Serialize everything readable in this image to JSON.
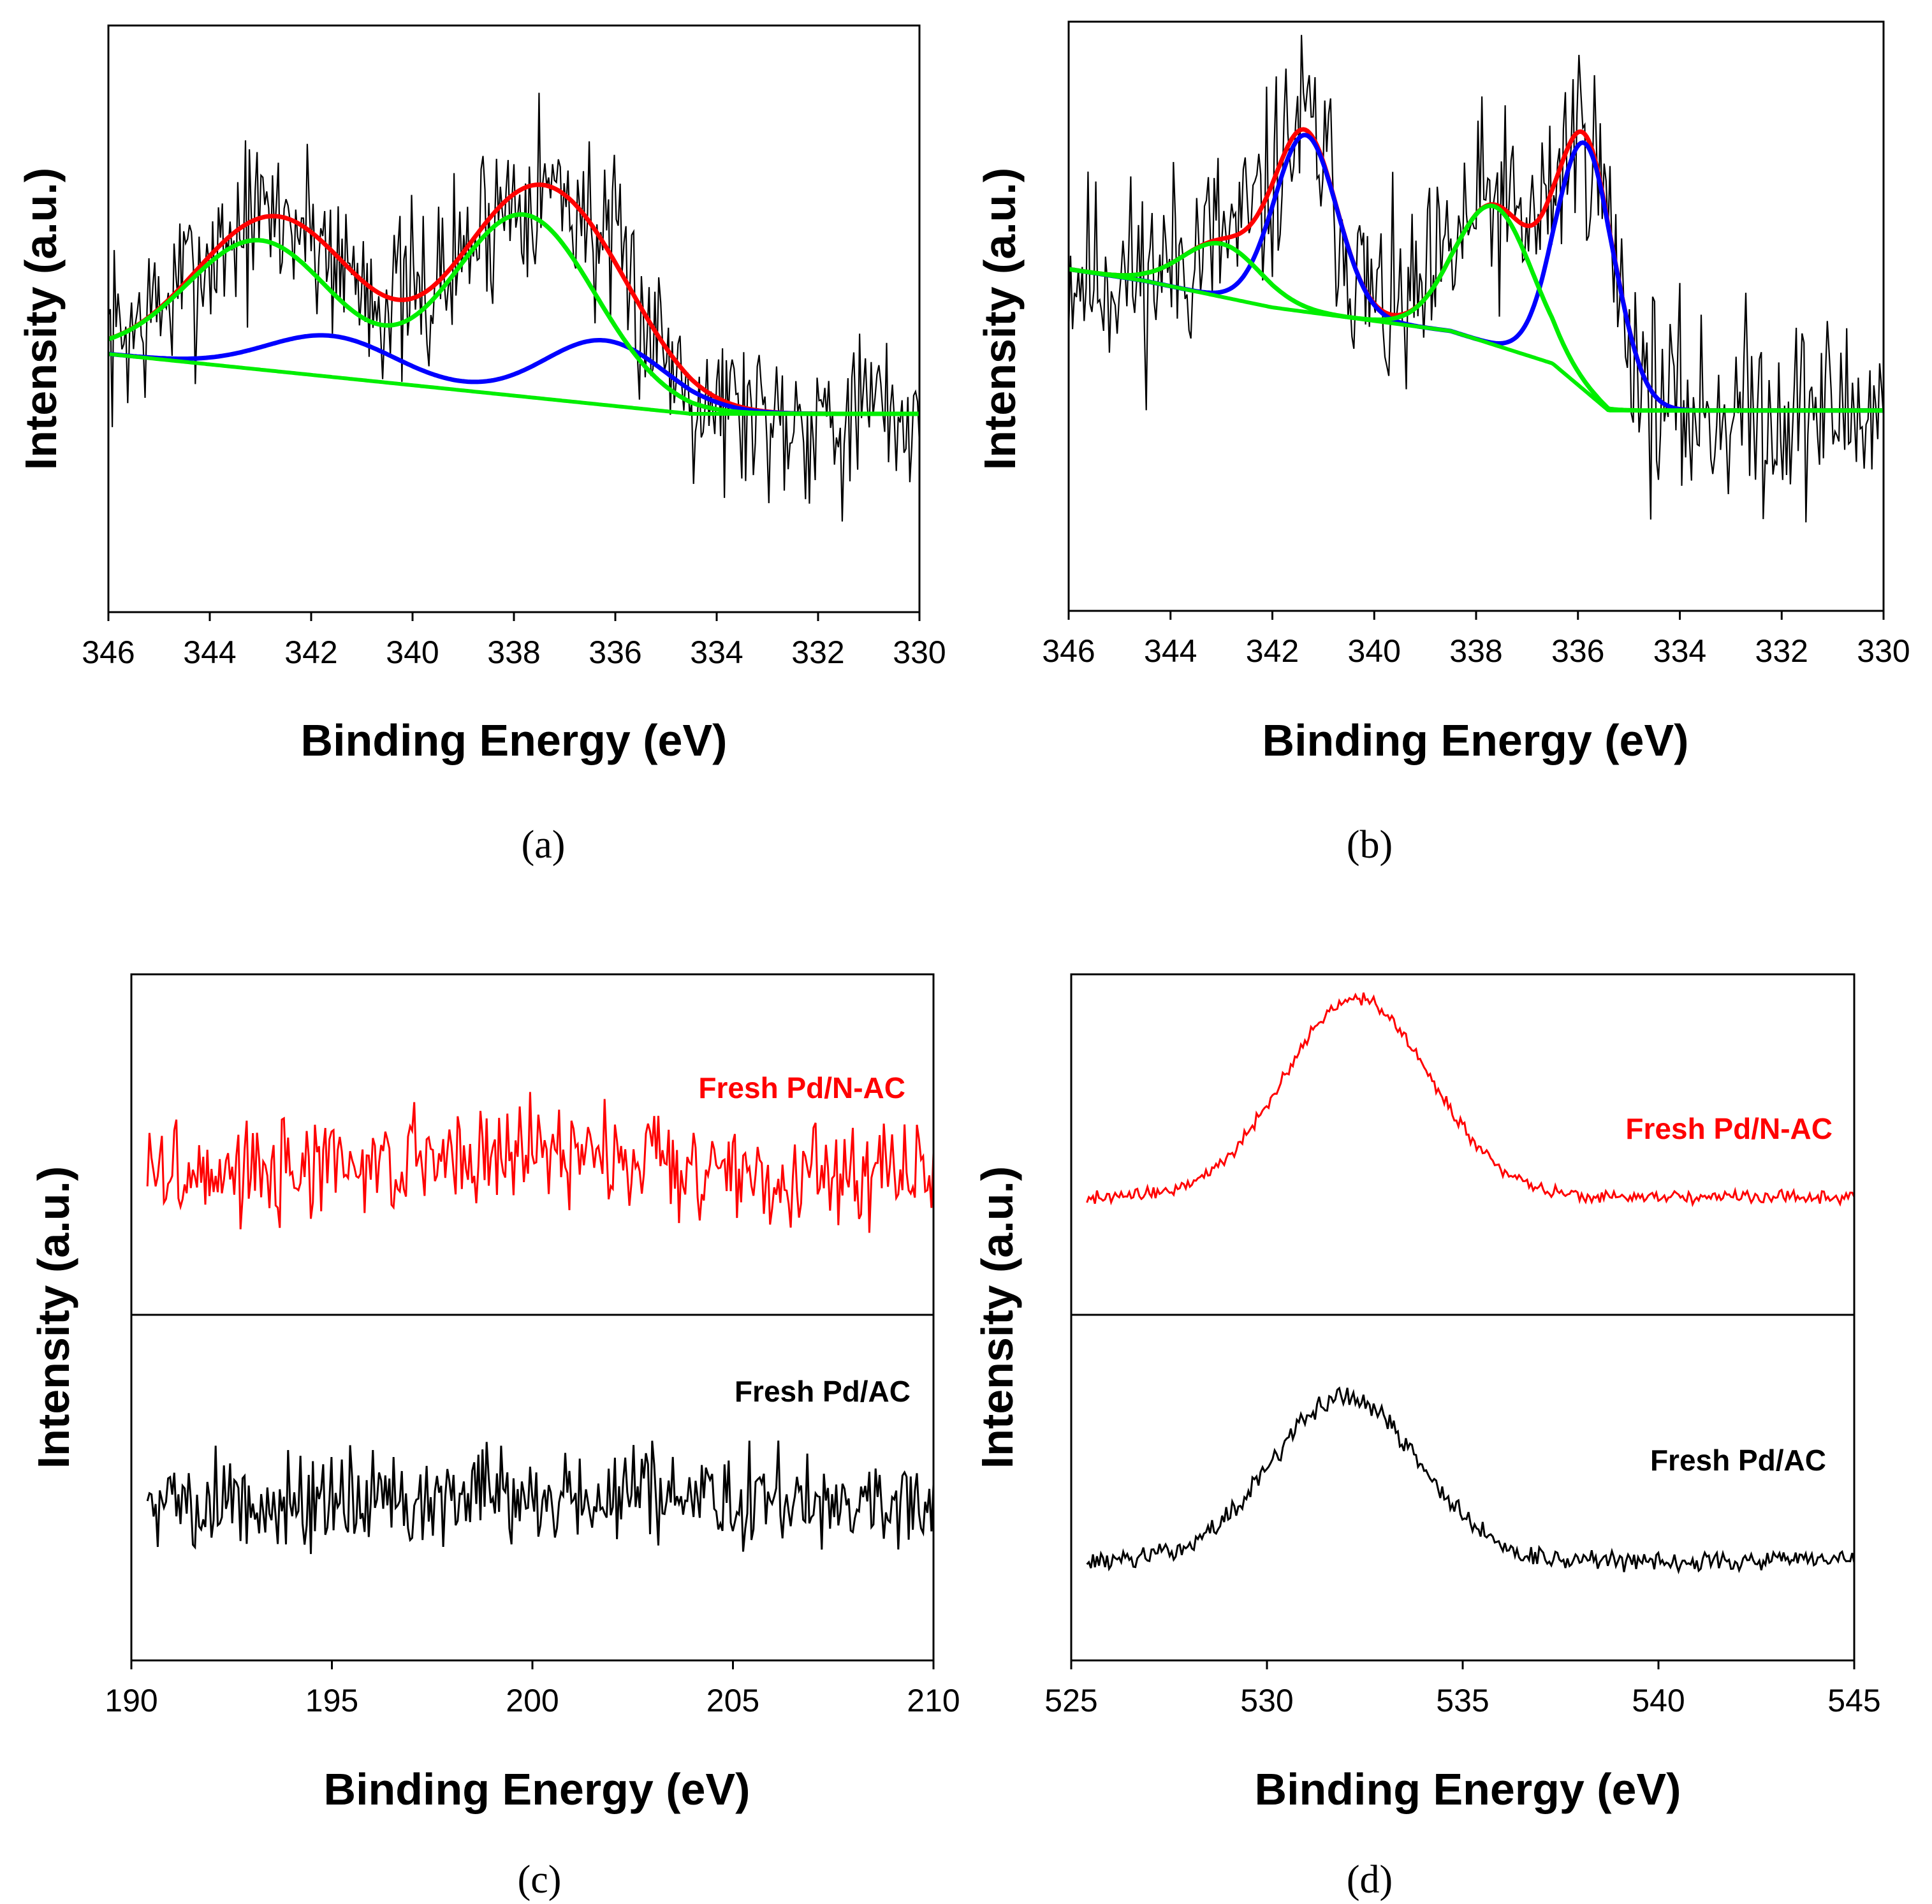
{
  "colors": {
    "raw": "#000000",
    "envelope": "#ff0000",
    "pd_metal": "#0000ff",
    "pd_oxide": "#00ee00",
    "fresh_pd_nac": "#ff0000",
    "fresh_pd_ac": "#000000"
  },
  "chart_data": [
    {
      "id": "a",
      "type": "line",
      "panel_label": "(a)",
      "xlabel": "Binding Energy (eV)",
      "ylabel": "Intensity (a.u.)",
      "xlim": [
        346,
        330
      ],
      "ylim": [
        0,
        10
      ],
      "xticks": [
        346,
        344,
        342,
        340,
        338,
        336,
        334,
        332,
        330
      ],
      "baseline": {
        "x": [
          346,
          334.5,
          330
        ],
        "y": [
          4.4,
          3.38,
          3.38
        ]
      },
      "raw": {
        "x_start": 346,
        "x_end": 330,
        "noise_seed": 7,
        "noise_amp": 0.75
      },
      "peaks_blue": [
        {
          "center": 341.6,
          "height": 0.7,
          "fwhm": 3.0
        },
        {
          "center": 336.2,
          "height": 1.1,
          "fwhm": 2.8
        }
      ],
      "peaks_green": [
        {
          "center": 343.0,
          "height": 2.2,
          "fwhm": 3.4
        },
        {
          "center": 337.8,
          "height": 3.1,
          "fwhm": 3.3
        }
      ]
    },
    {
      "id": "b",
      "type": "line",
      "panel_label": "(b)",
      "xlabel": "Binding Energy (eV)",
      "ylabel": "Intensity (a.u.)",
      "xlim": [
        346,
        330
      ],
      "ylim": [
        0,
        10
      ],
      "xticks": [
        346,
        344,
        342,
        340,
        338,
        336,
        334,
        332,
        330
      ],
      "baseline": {
        "x": [
          346,
          344.5,
          342,
          338.5,
          336.5,
          335.4,
          330
        ],
        "y": [
          5.8,
          5.6,
          5.15,
          4.75,
          4.2,
          3.4,
          3.4
        ]
      },
      "raw": {
        "x_start": 346,
        "x_end": 330,
        "noise_seed": 11,
        "noise_amp": 0.85
      },
      "peaks_blue": [
        {
          "center": 341.35,
          "height": 3.0,
          "fwhm": 1.45
        },
        {
          "center": 335.85,
          "height": 4.2,
          "fwhm": 1.35
        }
      ],
      "peaks_green": [
        {
          "center": 343.0,
          "height": 0.9,
          "fwhm": 1.8
        },
        {
          "center": 337.65,
          "height": 2.35,
          "fwhm": 1.8
        }
      ]
    },
    {
      "id": "c",
      "type": "line",
      "panel_label": "(c)",
      "xlabel": "Binding Energy (eV)",
      "ylabel": "Intensity (a.u.)",
      "xlim": [
        190,
        210
      ],
      "ylim": [
        0,
        10
      ],
      "xticks": [
        190,
        195,
        200,
        205,
        210
      ],
      "series": [
        {
          "name": "Fresh Pd/N-AC",
          "color": "#ff0000",
          "level": 7.1,
          "noise_amp": 0.45,
          "noise_seed": 3,
          "peak_center": 200.0,
          "peak_height": 0.35,
          "peak_fwhm": 6.0
        },
        {
          "name": "Fresh Pd/AC",
          "color": "#000000",
          "level": 2.35,
          "noise_amp": 0.45,
          "noise_seed": 5,
          "peak_center": 200.0,
          "peak_height": 0.0,
          "peak_fwhm": 6.0
        }
      ]
    },
    {
      "id": "d",
      "type": "line",
      "panel_label": "(d)",
      "xlabel": "Binding Energy (eV)",
      "ylabel": "Intensity (a.u.)",
      "xlim": [
        525,
        545
      ],
      "ylim": [
        0,
        10
      ],
      "xticks": [
        525,
        530,
        535,
        540,
        545
      ],
      "series": [
        {
          "name": "Fresh Pd/N-AC",
          "color": "#ff0000",
          "level": 6.75,
          "noise_amp": 0.06,
          "noise_seed": 9,
          "peak_center": 532.3,
          "peak_height": 2.9,
          "peak_fwhm": 4.4
        },
        {
          "name": "Fresh Pd/AC",
          "color": "#000000",
          "level": 1.45,
          "noise_amp": 0.09,
          "noise_seed": 13,
          "peak_center": 532.0,
          "peak_height": 2.4,
          "peak_fwhm": 4.4
        }
      ]
    }
  ]
}
